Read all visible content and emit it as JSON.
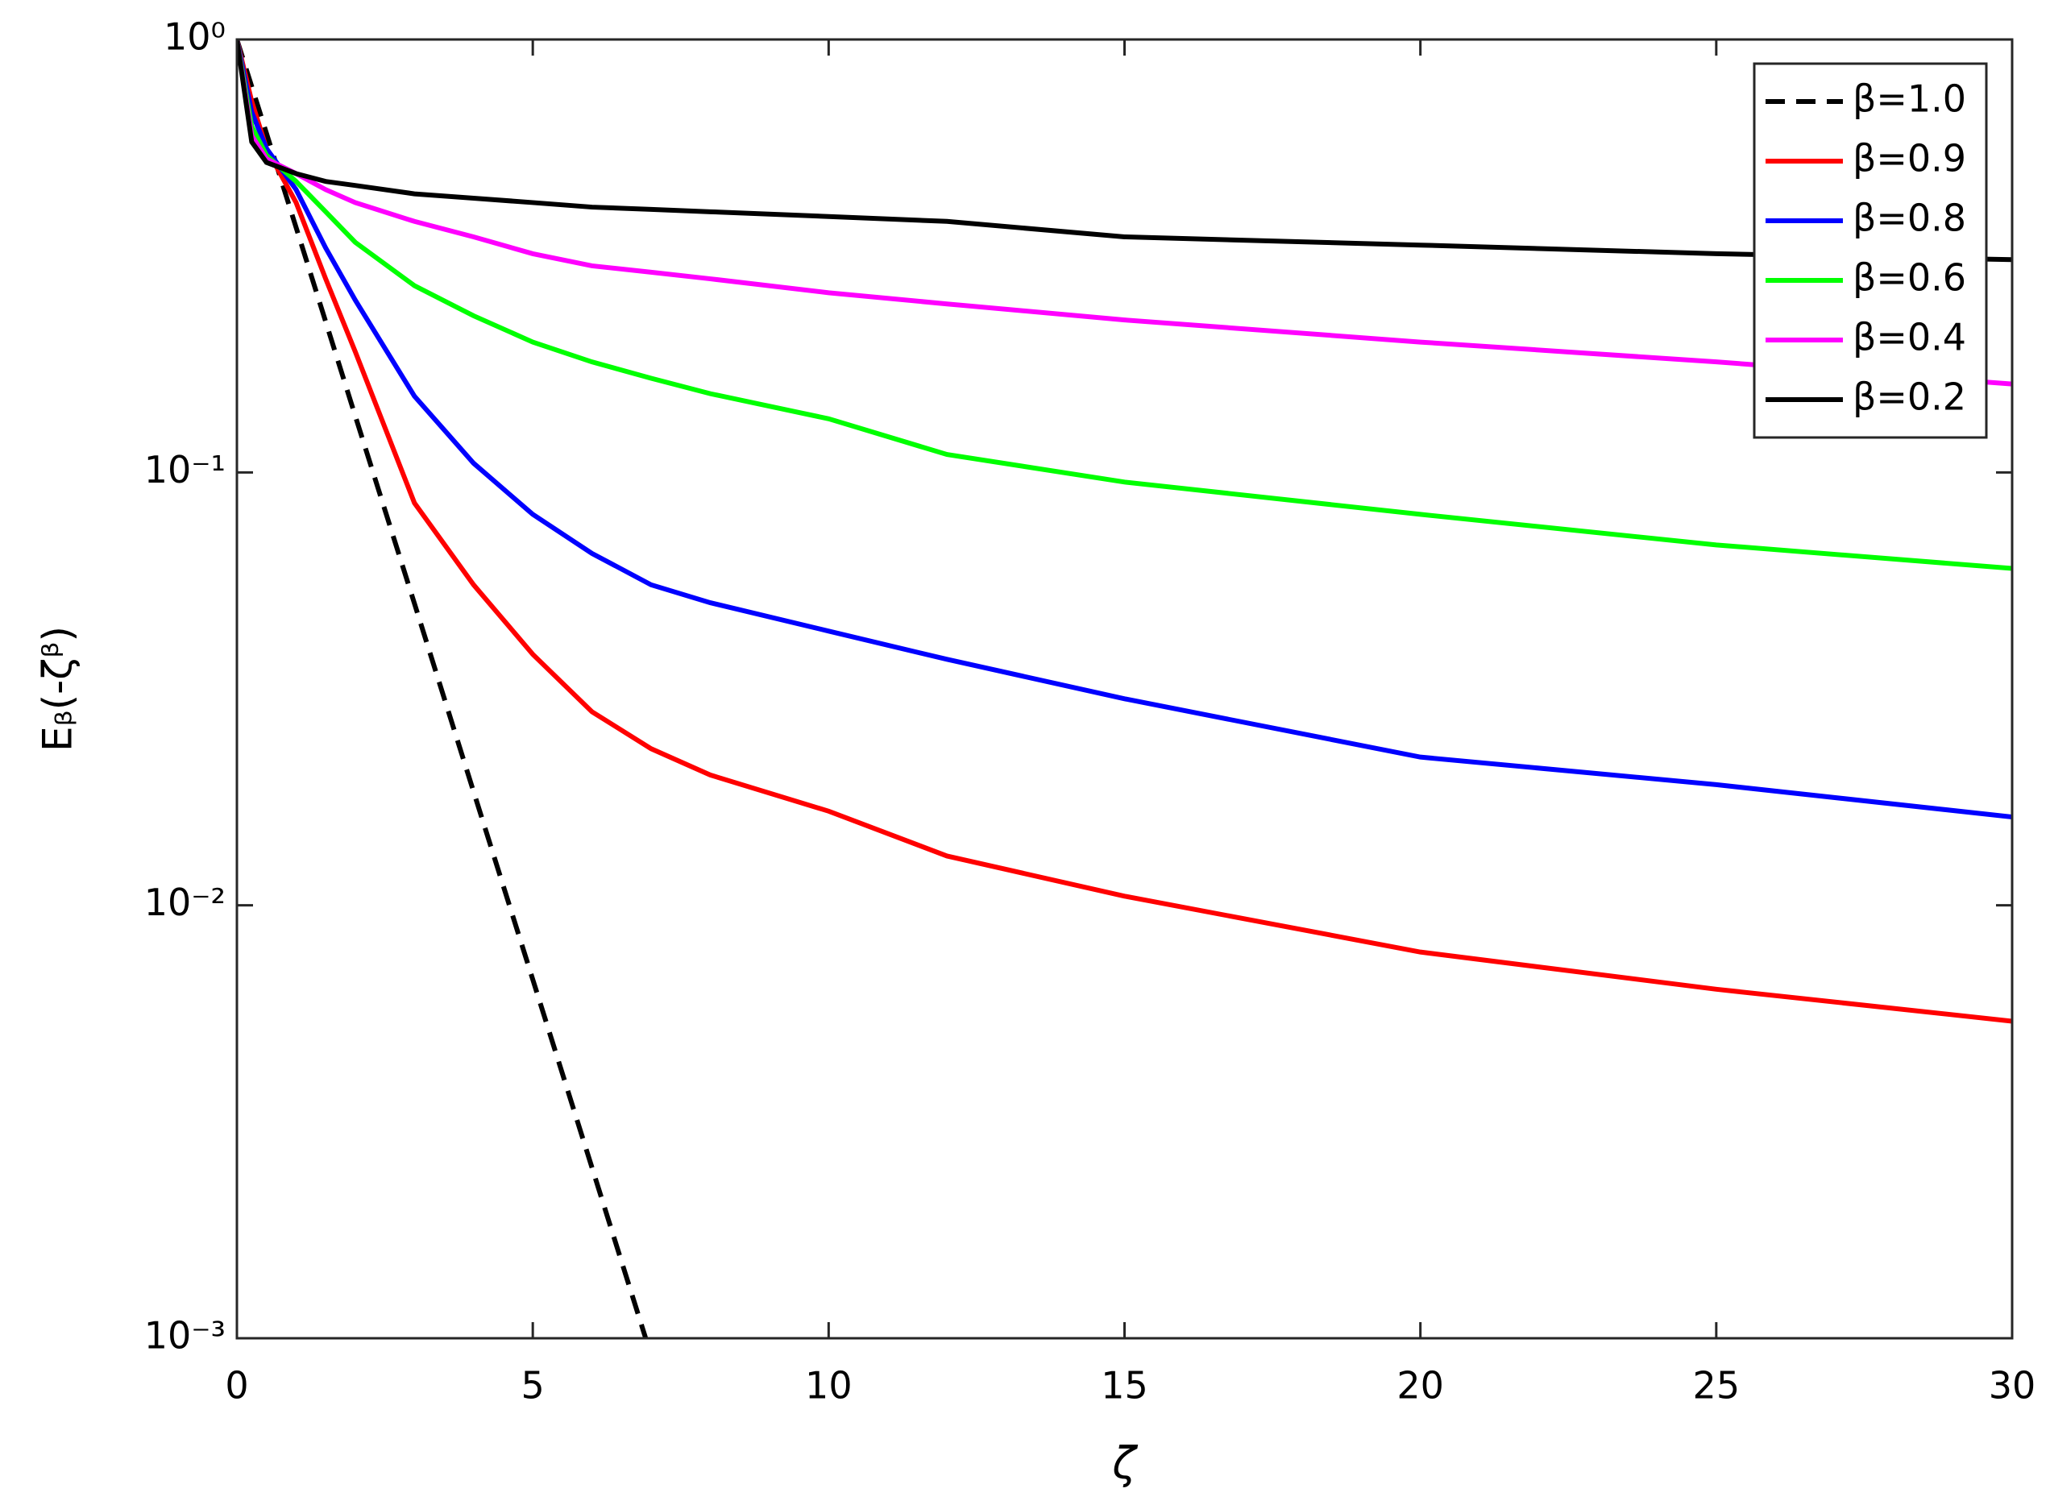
{
  "chart_data": {
    "type": "line",
    "x_label": "ζ",
    "y_label": "Eᵦ(-ζᵝ)",
    "log_y": true,
    "grid": false,
    "legend_position": "northeast",
    "xlim": [
      0,
      30
    ],
    "xticks": [
      0,
      5,
      10,
      15,
      20,
      25,
      30
    ],
    "ylim": [
      0.001,
      1
    ],
    "yticks": [
      {
        "value": 0.001,
        "label": "10⁻³"
      },
      {
        "value": 0.01,
        "label": "10⁻²"
      },
      {
        "value": 0.1,
        "label": "10⁻¹"
      },
      {
        "value": 1,
        "label": "10⁰"
      }
    ],
    "x": [
      0,
      0.25,
      0.5,
      1,
      1.5,
      2,
      3,
      4,
      5,
      6,
      7,
      8,
      10,
      12,
      15,
      20,
      25,
      30
    ],
    "series": [
      {
        "name": "β=1.0",
        "color": "#000000",
        "linestyle": "dashed",
        "values": [
          1,
          0.779,
          0.607,
          0.368,
          0.223,
          0.135,
          0.0498,
          0.0183,
          0.00674,
          0.00248,
          0.000912,
          null,
          null,
          null,
          null,
          null,
          null,
          null
        ]
      },
      {
        "name": "β=0.9",
        "color": "#ff0000",
        "linestyle": "solid",
        "values": [
          1,
          0.72,
          0.56,
          0.42,
          0.28,
          0.19,
          0.085,
          0.055,
          0.038,
          0.028,
          0.023,
          0.02,
          0.0165,
          0.013,
          0.0105,
          0.0078,
          0.0064,
          0.0054
        ]
      },
      {
        "name": "β=0.8",
        "color": "#0000ff",
        "linestyle": "solid",
        "values": [
          1,
          0.68,
          0.56,
          0.45,
          0.33,
          0.25,
          0.15,
          0.105,
          0.08,
          0.065,
          0.055,
          0.05,
          0.043,
          0.037,
          0.03,
          0.022,
          0.019,
          0.016
        ]
      },
      {
        "name": "β=0.6",
        "color": "#00ff00",
        "linestyle": "solid",
        "values": [
          1,
          0.63,
          0.54,
          0.47,
          0.4,
          0.34,
          0.27,
          0.23,
          0.2,
          0.18,
          0.165,
          0.152,
          0.133,
          0.11,
          0.095,
          0.08,
          0.068,
          0.06
        ]
      },
      {
        "name": "β=0.4",
        "color": "#ff00ff",
        "linestyle": "solid",
        "values": [
          1,
          0.6,
          0.53,
          0.49,
          0.45,
          0.42,
          0.38,
          0.35,
          0.32,
          0.3,
          0.29,
          0.28,
          0.26,
          0.245,
          0.225,
          0.2,
          0.18,
          0.16
        ]
      },
      {
        "name": "β=0.2",
        "color": "#000000",
        "linestyle": "solid",
        "values": [
          1,
          0.58,
          0.52,
          0.49,
          0.47,
          0.46,
          0.44,
          0.43,
          0.42,
          0.41,
          0.405,
          0.4,
          0.39,
          0.38,
          0.35,
          0.335,
          0.32,
          0.31
        ]
      }
    ]
  }
}
